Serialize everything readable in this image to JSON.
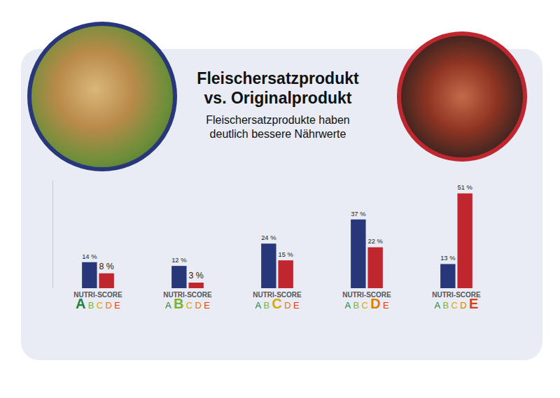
{
  "chart_data": {
    "type": "bar",
    "title": "Fleischersatzprodukt vs. Originalprodukt",
    "subtitle": "Fleischersatzprodukte haben deutlich bessere Nährwerte",
    "category_header": "NUTRI-SCORE",
    "categories": [
      "A",
      "B",
      "C",
      "D",
      "E"
    ],
    "series": [
      {
        "color": "#27377a",
        "values": [
          14,
          12,
          24,
          37,
          13
        ],
        "value_labels": [
          "14 %",
          "12 %",
          "24 %",
          "37 %",
          "13 %"
        ]
      },
      {
        "color": "#c0262e",
        "values": [
          8,
          3,
          15,
          22,
          51
        ],
        "value_labels": [
          "8 %",
          "3 %",
          "15 %",
          "22 %",
          "51 %"
        ]
      }
    ],
    "ylim": [
      0,
      58
    ],
    "yticks": [],
    "tick_labels": "x",
    "data_labels": true,
    "grid": false
  }
}
